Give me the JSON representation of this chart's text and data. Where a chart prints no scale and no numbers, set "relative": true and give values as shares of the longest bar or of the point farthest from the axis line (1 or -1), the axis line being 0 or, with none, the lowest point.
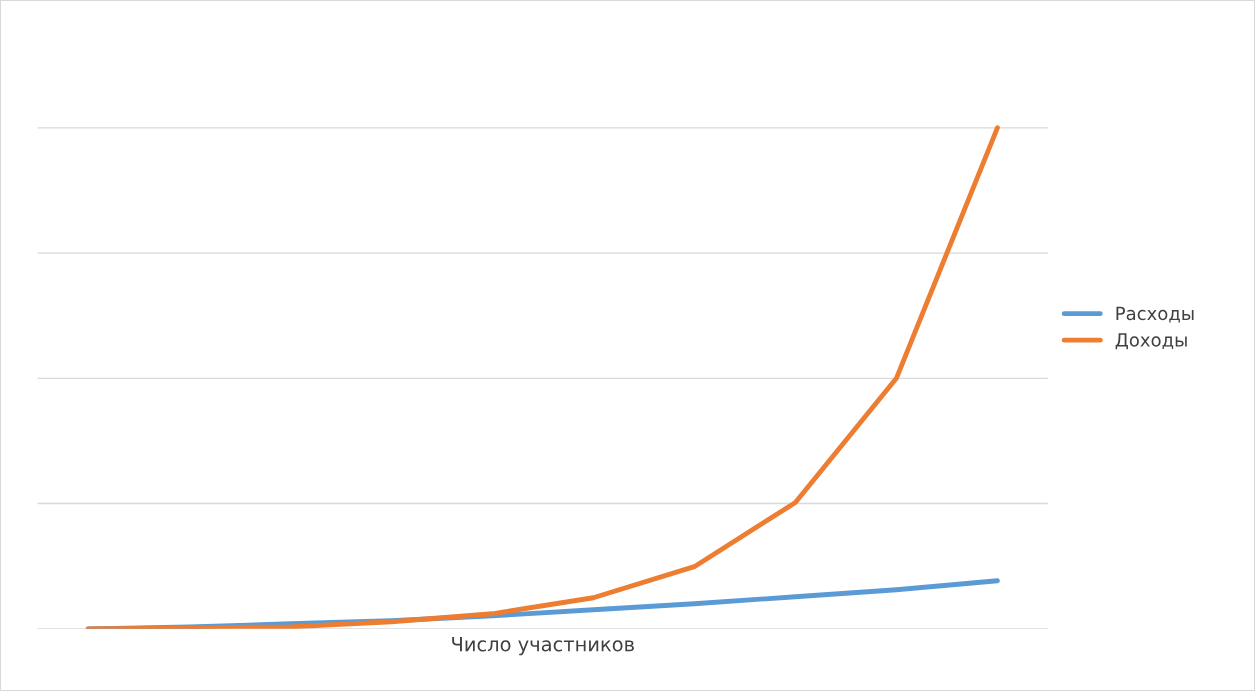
{
  "chart_data": {
    "type": "line",
    "relative": true,
    "xlabel": "Число участников",
    "categories": [
      null,
      null,
      null,
      null,
      null,
      null,
      null,
      null,
      null,
      null
    ],
    "series": [
      {
        "name": "Расходы",
        "color": "#5b9bd5",
        "values": [
          0,
          0.004,
          0.01,
          0.016,
          0.026,
          0.038,
          0.05,
          0.064,
          0.078,
          0.096
        ]
      },
      {
        "name": "Доходы",
        "color": "#ed7d31",
        "values": [
          0,
          0.002,
          0.004,
          0.014,
          0.03,
          0.062,
          0.124,
          0.252,
          0.5,
          1
        ]
      }
    ],
    "grid": "y",
    "legend": "right",
    "marker": "none",
    "line_style": "solid"
  }
}
